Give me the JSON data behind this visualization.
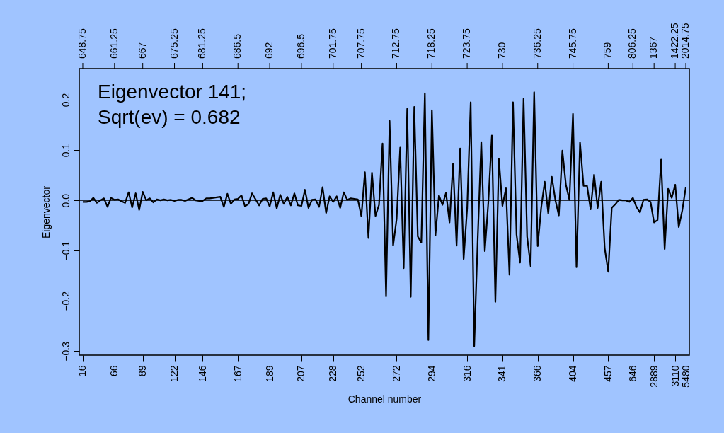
{
  "chart_data": {
    "type": "line",
    "xlabel": "Channel number",
    "ylabel": "Eigenvector",
    "annotations": [
      "Eigenvector 141;\nSqrt(ev) = 0.682",
      {
        "text": "648.75",
        "x": "16"
      },
      {
        "text": "661.25",
        "x": "66"
      },
      {
        "text": "667",
        "x": "89"
      },
      {
        "text": "675.25",
        "x": "122"
      },
      {
        "text": "681.25",
        "x": "146"
      },
      {
        "text": "686.5",
        "x": "167"
      },
      {
        "text": "692",
        "x": "189"
      },
      {
        "text": "696.5",
        "x": "207"
      },
      {
        "text": "701.75",
        "x": "228"
      },
      {
        "text": "707.75",
        "x": "252"
      },
      {
        "text": "712.75",
        "x": "272"
      },
      {
        "text": "718.25",
        "x": "294"
      },
      {
        "text": "723.75",
        "x": "316"
      },
      {
        "text": "730",
        "x": "341"
      },
      {
        "text": "736.25",
        "x": "366"
      },
      {
        "text": "745.75",
        "x": "404"
      },
      {
        "text": "759",
        "x": "457"
      },
      {
        "text": "806.25",
        "x": "646"
      },
      {
        "text": "1367",
        "x": "2889"
      },
      {
        "text": "1422.25",
        "x": "3110"
      },
      {
        "text": "2014.75",
        "x": "5480"
      }
    ],
    "categories": [
      "16",
      null,
      null,
      null,
      null,
      null,
      null,
      null,
      null,
      "66",
      null,
      null,
      null,
      null,
      null,
      null,
      null,
      "89",
      null,
      null,
      null,
      null,
      null,
      null,
      null,
      null,
      "122",
      null,
      null,
      null,
      null,
      null,
      null,
      null,
      "146",
      null,
      null,
      null,
      null,
      null,
      null,
      null,
      null,
      null,
      "167",
      null,
      null,
      null,
      null,
      null,
      null,
      null,
      null,
      "189",
      null,
      null,
      null,
      null,
      null,
      null,
      null,
      null,
      "207",
      null,
      null,
      null,
      null,
      null,
      null,
      null,
      null,
      "228",
      null,
      null,
      null,
      null,
      null,
      null,
      null,
      "252",
      null,
      null,
      null,
      null,
      null,
      null,
      null,
      null,
      null,
      "272",
      null,
      null,
      null,
      null,
      null,
      null,
      null,
      null,
      null,
      "294",
      null,
      null,
      null,
      null,
      null,
      null,
      null,
      null,
      null,
      "316",
      null,
      null,
      null,
      null,
      null,
      null,
      null,
      null,
      null,
      "341",
      null,
      null,
      null,
      null,
      null,
      null,
      null,
      null,
      null,
      "366",
      null,
      null,
      null,
      null,
      null,
      null,
      null,
      null,
      null,
      "404",
      null,
      null,
      null,
      null,
      null,
      null,
      null,
      null,
      null,
      "457",
      null,
      null,
      null,
      null,
      null,
      null,
      "646",
      null,
      null,
      null,
      null,
      null,
      "2889",
      null,
      null,
      null,
      null,
      null,
      "3110",
      null,
      null,
      "5480"
    ],
    "ylim": [
      -0.308,
      0.262
    ],
    "yticks": [
      {
        "value": -0.3,
        "label": "−0.3"
      },
      {
        "value": -0.2,
        "label": "−0.2"
      },
      {
        "value": -0.1,
        "label": "−0.1"
      },
      {
        "value": 0,
        "label": "0.0"
      },
      {
        "value": 0.1,
        "label": "0.1"
      },
      {
        "value": 0.2,
        "label": "0.2"
      }
    ],
    "ref_lines": [
      {
        "axis": "y",
        "value": 0,
        "color": "#000000"
      }
    ],
    "line_style": "solid",
    "series": [
      {
        "color": "#000000",
        "values": [
          -0.003,
          -0.003,
          -0.002,
          0.005,
          -0.005,
          0,
          0.004,
          -0.013,
          0.005,
          0.001,
          0.002,
          -0.002,
          -0.005,
          0.016,
          -0.014,
          0.014,
          -0.019,
          0.017,
          0,
          0.004,
          -0.004,
          0.002,
          0,
          0.002,
          0,
          0.001,
          -0.001,
          0.001,
          0.001,
          -0.001,
          0.002,
          0.005,
          0,
          -0.001,
          -0.001,
          0.004,
          0.004,
          0.005,
          0.006,
          0.007,
          -0.013,
          0.013,
          -0.007,
          0.002,
          0.003,
          0.01,
          -0.012,
          -0.007,
          0.014,
          0.002,
          -0.01,
          0.003,
          0.004,
          -0.012,
          0.016,
          -0.016,
          0.011,
          -0.007,
          0.007,
          -0.01,
          0.014,
          -0.01,
          -0.011,
          0.021,
          -0.015,
          0.001,
          0.002,
          -0.013,
          0.026,
          -0.025,
          0.008,
          -0.003,
          0.008,
          -0.015,
          0.016,
          0.001,
          0.004,
          0.003,
          0.002,
          -0.032,
          0.056,
          -0.075,
          0.055,
          -0.031,
          -0.009,
          0.113,
          -0.191,
          0.158,
          -0.09,
          -0.037,
          0.105,
          -0.135,
          0.182,
          -0.192,
          0.186,
          -0.072,
          -0.084,
          0.213,
          -0.278,
          0.179,
          -0.07,
          0.01,
          -0.009,
          0.015,
          -0.044,
          0.073,
          -0.09,
          0.103,
          -0.117,
          -0.016,
          0.195,
          -0.29,
          -0.076,
          0.116,
          -0.101,
          -0.004,
          0.129,
          -0.202,
          0.082,
          -0.011,
          0.024,
          -0.148,
          0.195,
          -0.068,
          -0.124,
          0.202,
          -0.072,
          -0.131,
          0.215,
          -0.091,
          -0.014,
          0.037,
          -0.026,
          0.047,
          0.001,
          -0.03,
          0.099,
          0.031,
          0.001,
          0.172,
          -0.133,
          0.115,
          0.029,
          0.029,
          -0.018,
          0.051,
          -0.015,
          0.037,
          -0.095,
          -0.142,
          -0.015,
          -0.008,
          0.001,
          0,
          0,
          -0.003,
          0.005,
          -0.013,
          -0.024,
          0.001,
          0.002,
          -0.003,
          -0.044,
          -0.039,
          0.081,
          -0.097,
          0.023,
          0.005,
          0.031,
          -0.053,
          -0.02,
          0.026
        ]
      }
    ]
  }
}
